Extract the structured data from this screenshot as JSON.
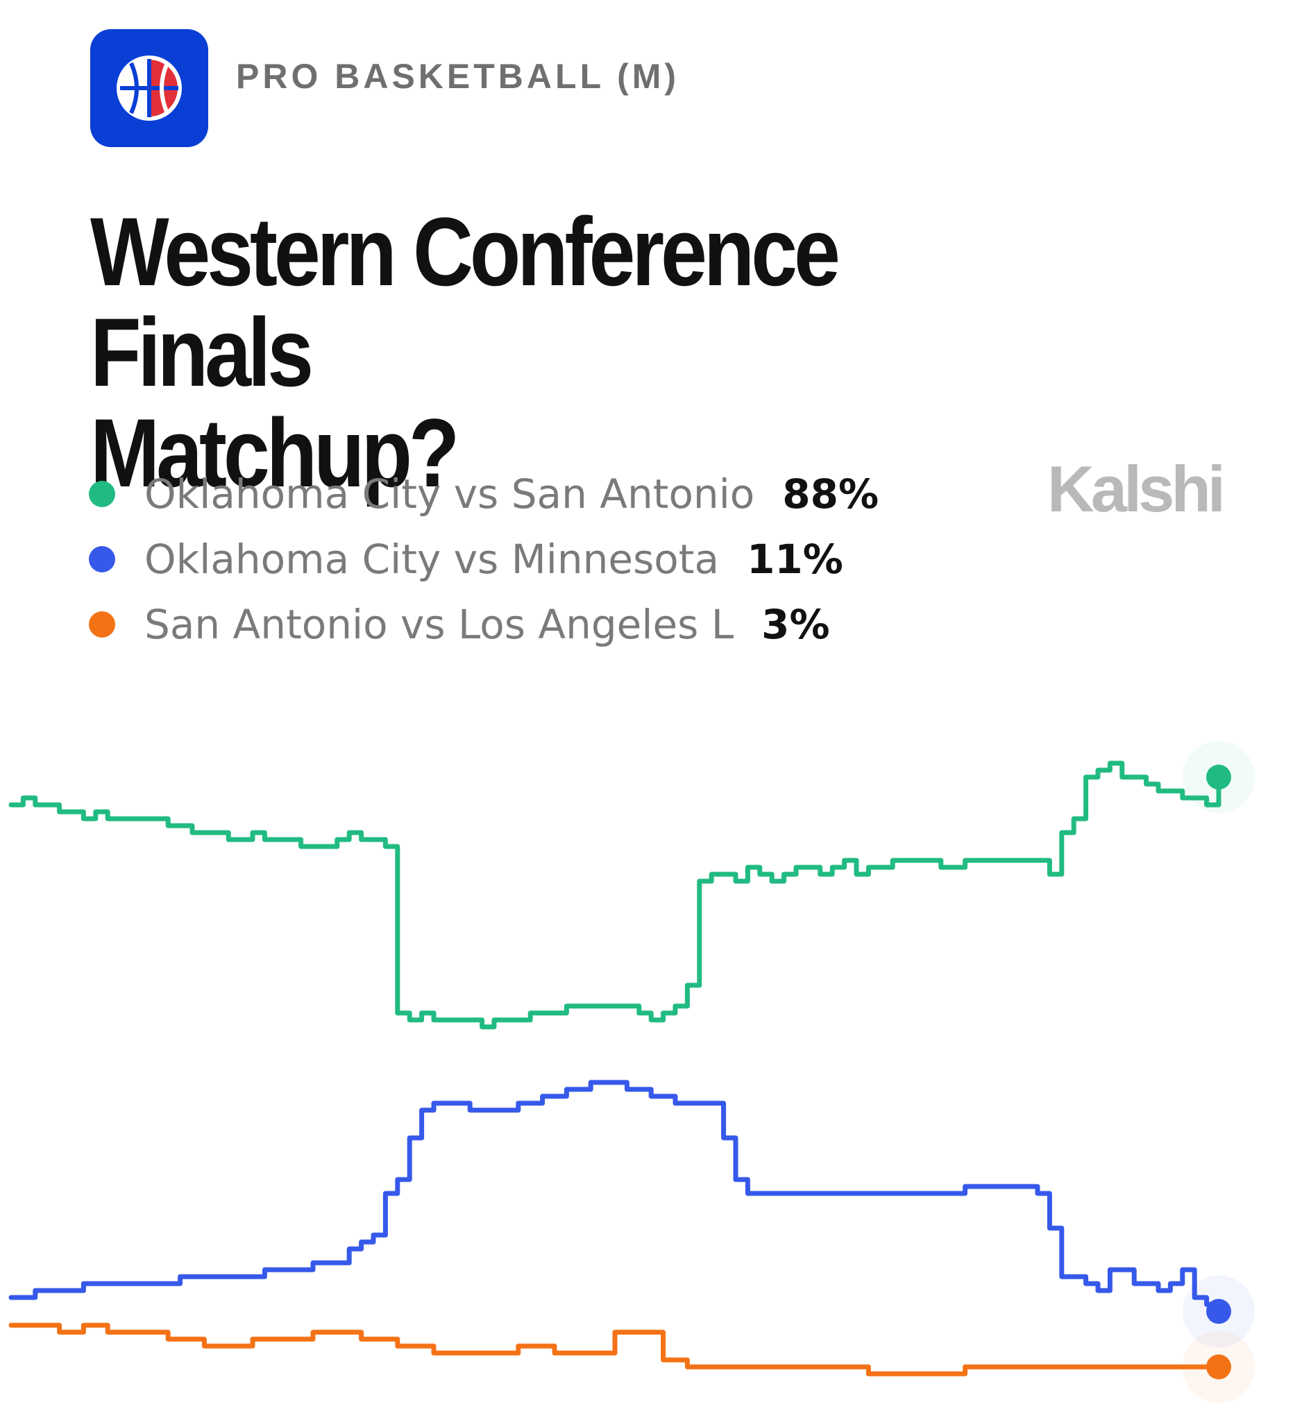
{
  "header": {
    "category": "PRO BASKETBALL (M)",
    "icon": "basketball-icon",
    "icon_color": "#0a3fd6"
  },
  "title": "Western Conference Finals\nMatchup?",
  "brand": "Kalshi",
  "chart_data": {
    "type": "line",
    "title": "Western Conference Finals Matchup?",
    "xlabel": "",
    "ylabel": "",
    "ylim": [
      0,
      100
    ],
    "grid": false,
    "legend_position": "top-left",
    "x": [
      0,
      1,
      2,
      3,
      4,
      5,
      6,
      7,
      8,
      9,
      10,
      11,
      12,
      13,
      14,
      15,
      16,
      17,
      18,
      19,
      20,
      21,
      22,
      23,
      24,
      25,
      26,
      27,
      28,
      29,
      30,
      31,
      32,
      33,
      34,
      35,
      36,
      37,
      38,
      39,
      40,
      41,
      42,
      43,
      44,
      45,
      46,
      47,
      48,
      49,
      50,
      51,
      52,
      53,
      54,
      55,
      56,
      57,
      58,
      59,
      60,
      61,
      62,
      63,
      64,
      65,
      66,
      67,
      68,
      69,
      70,
      71,
      72,
      73,
      74,
      75,
      76,
      77,
      78,
      79,
      80,
      81,
      82,
      83,
      84,
      85,
      86,
      87,
      88,
      89,
      90,
      91,
      92,
      93,
      94,
      95,
      96,
      97,
      98,
      99,
      100
    ],
    "series": [
      {
        "name": "Oklahoma City vs San Antonio",
        "label": "88%",
        "color": "#21bb82",
        "values": [
          84,
          85,
          84,
          84,
          83,
          83,
          82,
          83,
          82,
          82,
          82,
          82,
          82,
          81,
          81,
          80,
          80,
          80,
          79,
          79,
          80,
          79,
          79,
          79,
          78,
          78,
          78,
          79,
          80,
          79,
          79,
          78,
          54,
          53,
          54,
          53,
          53,
          53,
          53,
          52,
          53,
          53,
          53,
          54,
          54,
          54,
          55,
          55,
          55,
          55,
          55,
          55,
          54,
          53,
          54,
          55,
          58,
          73,
          74,
          74,
          73,
          75,
          74,
          73,
          74,
          75,
          75,
          74,
          75,
          76,
          74,
          75,
          75,
          76,
          76,
          76,
          76,
          75,
          75,
          76,
          76,
          76,
          76,
          76,
          76,
          76,
          74,
          80,
          82,
          88,
          89,
          90,
          88,
          88,
          87,
          86,
          86,
          85,
          85,
          84,
          88
        ]
      },
      {
        "name": "Oklahoma City vs Minnesota",
        "label": "11%",
        "color": "#3659ea",
        "values": [
          13,
          13,
          14,
          14,
          14,
          14,
          15,
          15,
          15,
          15,
          15,
          15,
          15,
          15,
          16,
          16,
          16,
          16,
          16,
          16,
          16,
          17,
          17,
          17,
          17,
          18,
          18,
          18,
          20,
          21,
          22,
          28,
          30,
          36,
          40,
          41,
          41,
          41,
          40,
          40,
          40,
          40,
          41,
          41,
          42,
          42,
          43,
          43,
          44,
          44,
          44,
          43,
          43,
          42,
          42,
          41,
          41,
          41,
          41,
          36,
          30,
          28,
          28,
          28,
          28,
          28,
          28,
          28,
          28,
          28,
          28,
          28,
          28,
          28,
          28,
          28,
          28,
          28,
          28,
          29,
          29,
          29,
          29,
          29,
          29,
          28,
          23,
          16,
          16,
          15,
          14,
          17,
          17,
          15,
          15,
          14,
          15,
          17,
          13,
          12,
          11
        ]
      },
      {
        "name": "San Antonio vs Los Angeles L",
        "label": "3%",
        "color": "#f47216",
        "values": [
          9,
          9,
          9,
          9,
          8,
          8,
          9,
          9,
          8,
          8,
          8,
          8,
          8,
          7,
          7,
          7,
          6,
          6,
          6,
          6,
          7,
          7,
          7,
          7,
          7,
          8,
          8,
          8,
          8,
          7,
          7,
          7,
          6,
          6,
          6,
          5,
          5,
          5,
          5,
          5,
          5,
          5,
          6,
          6,
          6,
          5,
          5,
          5,
          5,
          5,
          8,
          8,
          8,
          8,
          4,
          4,
          3,
          3,
          3,
          3,
          3,
          3,
          3,
          3,
          3,
          3,
          3,
          3,
          3,
          3,
          3,
          2,
          2,
          2,
          2,
          2,
          2,
          2,
          2,
          3,
          3,
          3,
          3,
          3,
          3,
          3,
          3,
          3,
          3,
          3,
          3,
          3,
          3,
          3,
          3,
          3,
          3,
          3,
          3,
          3,
          3
        ]
      }
    ]
  }
}
